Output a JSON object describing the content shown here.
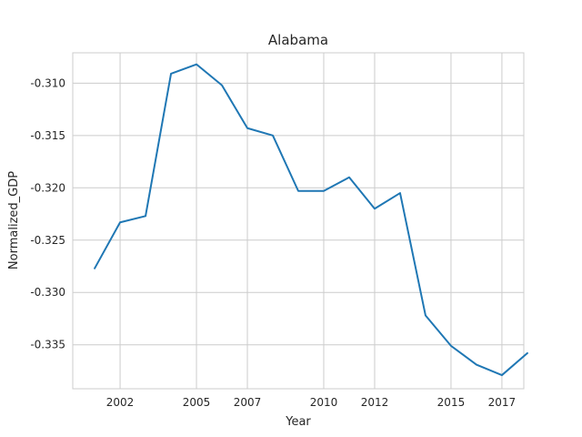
{
  "chart_data": {
    "type": "line",
    "title": "Alabama",
    "xlabel": "Year",
    "ylabel": "Normalized_GDP",
    "xlim": [
      2000.14,
      2017.86
    ],
    "ylim": [
      -0.3392,
      -0.3071
    ],
    "xticks": [
      2002,
      2005,
      2007,
      2010,
      2012,
      2015,
      2017
    ],
    "xtick_labels": [
      "2002",
      "2005",
      "2007",
      "2010",
      "2012",
      "2015",
      "2017"
    ],
    "yticks": [
      -0.31,
      -0.315,
      -0.32,
      -0.325,
      -0.33,
      -0.335
    ],
    "ytick_labels": [
      "-0.310",
      "-0.315",
      "-0.320",
      "-0.325",
      "-0.330",
      "-0.335"
    ],
    "grid": true,
    "series": [
      {
        "color": "#1f77b4",
        "x": [
          2001,
          2002,
          2003,
          2004,
          2005,
          2006,
          2007,
          2008,
          2009,
          2010,
          2011,
          2012,
          2013,
          2014,
          2015,
          2016,
          2017,
          2018
        ],
        "y": [
          -0.3277,
          -0.3233,
          -0.3227,
          -0.3091,
          -0.3082,
          -0.3102,
          -0.3143,
          -0.315,
          -0.3203,
          -0.3203,
          -0.319,
          -0.322,
          -0.3205,
          -0.3322,
          -0.3351,
          -0.3369,
          -0.3379,
          -0.3358
        ]
      }
    ]
  }
}
